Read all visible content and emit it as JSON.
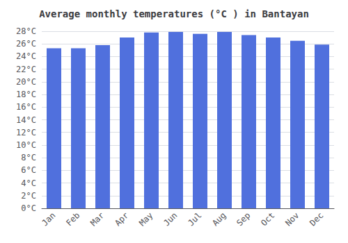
{
  "chart_data": {
    "type": "bar",
    "title": "Average monthly temperatures (°C ) in Bantayan",
    "categories": [
      "Jan",
      "Feb",
      "Mar",
      "Apr",
      "May",
      "Jun",
      "Jul",
      "Aug",
      "Sep",
      "Oct",
      "Nov",
      "Dec"
    ],
    "values": [
      25.3,
      25.3,
      25.8,
      27.0,
      27.8,
      27.9,
      27.6,
      27.9,
      27.4,
      27.0,
      26.5,
      25.9
    ],
    "ylim": [
      0,
      28
    ],
    "yticks": [
      {
        "value": 0,
        "label": "0°C"
      },
      {
        "value": 2,
        "label": "2°C"
      },
      {
        "value": 4,
        "label": "4°C"
      },
      {
        "value": 6,
        "label": "6°C"
      },
      {
        "value": 8,
        "label": "8°C"
      },
      {
        "value": 10,
        "label": "10°C"
      },
      {
        "value": 12,
        "label": "12°C"
      },
      {
        "value": 14,
        "label": "14°C"
      },
      {
        "value": 16,
        "label": "16°C"
      },
      {
        "value": 18,
        "label": "18°C"
      },
      {
        "value": 20,
        "label": "20°C"
      },
      {
        "value": 22,
        "label": "22°C"
      },
      {
        "value": 24,
        "label": "24°C"
      },
      {
        "value": 26,
        "label": "26°C"
      },
      {
        "value": 28,
        "label": "28°C"
      }
    ],
    "grid": true
  }
}
